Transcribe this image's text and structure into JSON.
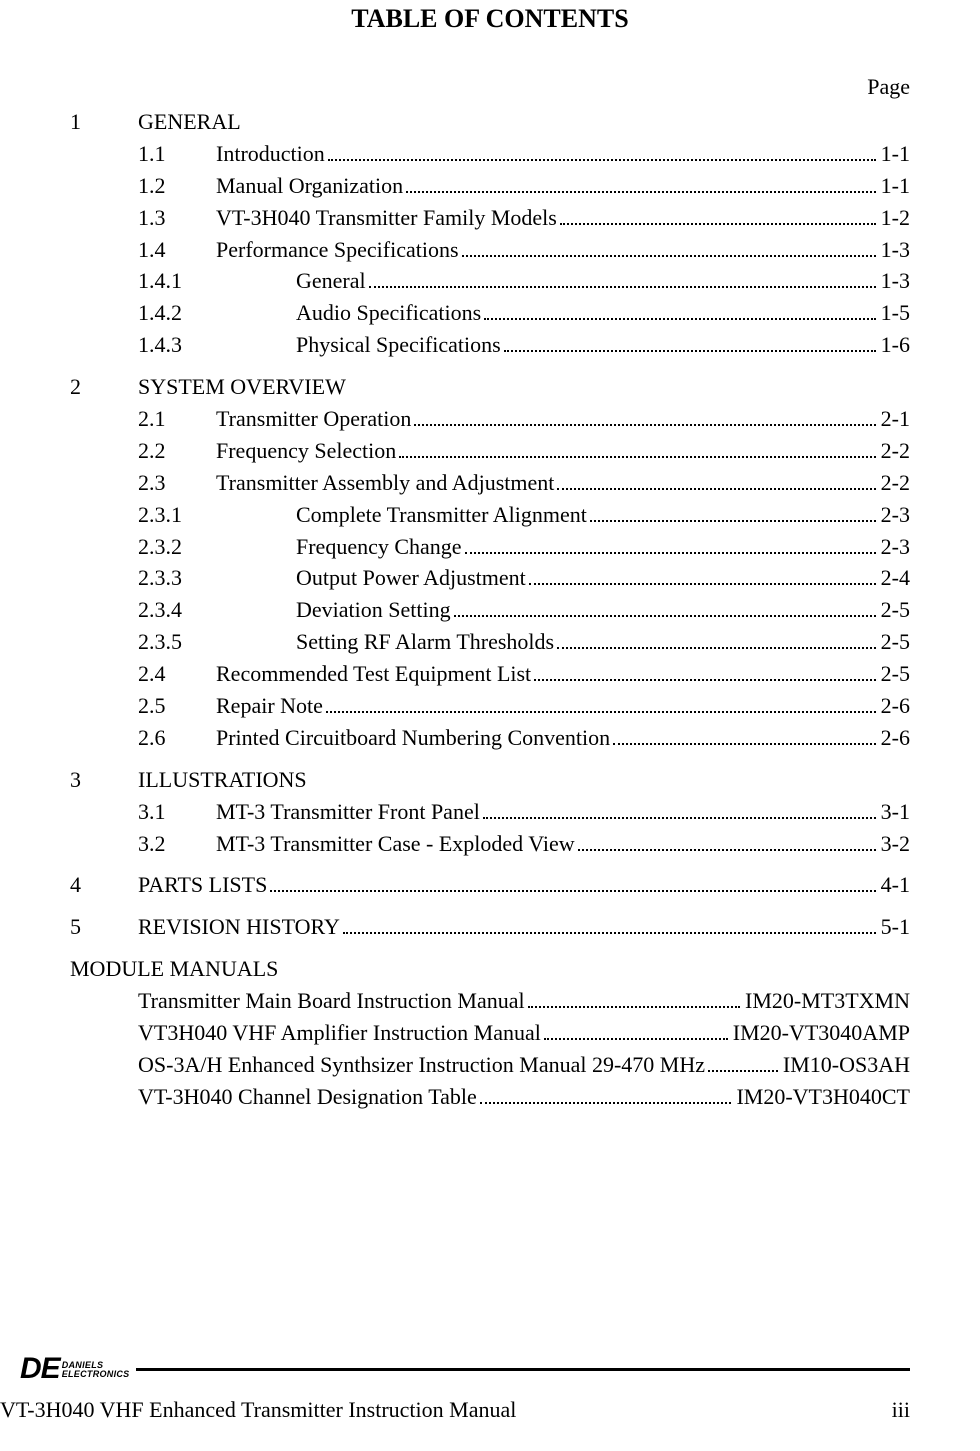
{
  "title": "TABLE OF CONTENTS",
  "page_label": "Page",
  "sections": [
    {
      "num": "1",
      "title": "GENERAL",
      "page": "",
      "items": [
        {
          "num": "1.1",
          "title": "Introduction",
          "page": "1-1",
          "indent": 1
        },
        {
          "num": "1.2",
          "title": "Manual Organization",
          "page": "1-1",
          "indent": 1
        },
        {
          "num": "1.3",
          "title": "VT-3H040 Transmitter Family Models",
          "page": "1-2",
          "indent": 1
        },
        {
          "num": "1.4",
          "title": "Performance Specifications",
          "page": "1-3",
          "indent": 1
        },
        {
          "num": "1.4.1",
          "title": "General",
          "page": "1-3",
          "indent": 2
        },
        {
          "num": "1.4.2",
          "title": "Audio Specifications",
          "page": "1-5",
          "indent": 2
        },
        {
          "num": "1.4.3",
          "title": "Physical Specifications",
          "page": "1-6",
          "indent": 2
        }
      ]
    },
    {
      "num": "2",
      "title": "SYSTEM OVERVIEW",
      "page": "",
      "items": [
        {
          "num": "2.1",
          "title": "Transmitter Operation",
          "page": "2-1",
          "indent": 1
        },
        {
          "num": "2.2",
          "title": "Frequency Selection",
          "page": "2-2",
          "indent": 1
        },
        {
          "num": "2.3",
          "title": "Transmitter Assembly and Adjustment",
          "page": "2-2",
          "indent": 1
        },
        {
          "num": "2.3.1",
          "title": "Complete Transmitter Alignment",
          "page": "2-3",
          "indent": 2
        },
        {
          "num": "2.3.2",
          "title": "Frequency Change",
          "page": "2-3",
          "indent": 2
        },
        {
          "num": "2.3.3",
          "title": "Output Power Adjustment",
          "page": "2-4",
          "indent": 2
        },
        {
          "num": "2.3.4",
          "title": "Deviation Setting",
          "page": "2-5",
          "indent": 2
        },
        {
          "num": "2.3.5",
          "title": "Setting RF Alarm Thresholds",
          "page": "2-5",
          "indent": 2
        },
        {
          "num": "2.4",
          "title": "Recommended Test Equipment List",
          "page": "2-5",
          "indent": 1
        },
        {
          "num": "2.5",
          "title": "Repair Note",
          "page": "2-6",
          "indent": 1
        },
        {
          "num": "2.6",
          "title": "Printed Circuitboard Numbering Convention",
          "page": "2-6",
          "indent": 1
        }
      ]
    },
    {
      "num": "3",
      "title": "ILLUSTRATIONS",
      "page": "",
      "items": [
        {
          "num": "3.1",
          "title": "MT-3 Transmitter Front Panel",
          "page": "3-1",
          "indent": 1
        },
        {
          "num": "3.2",
          "title": "MT-3 Transmitter Case - Exploded View",
          "page": "3-2",
          "indent": 1
        }
      ]
    },
    {
      "num": "4",
      "title": "PARTS LISTS",
      "page": "4-1",
      "leader": true,
      "items": []
    },
    {
      "num": "5",
      "title": "REVISION HISTORY",
      "page": "5-1",
      "leader": true,
      "items": []
    }
  ],
  "module_heading": "MODULE MANUALS",
  "modules": [
    {
      "title": "Transmitter Main Board Instruction Manual ",
      "page": "IM20-MT3TXMN"
    },
    {
      "title": "VT3H040 VHF Amplifier Instruction Manual ",
      "page": " IM20-VT3040AMP"
    },
    {
      "title": "OS-3A/H Enhanced Synthsizer Instruction Manual 29-470 MHz ",
      "page": " IM10-OS3AH"
    },
    {
      "title": "VT-3H040 Channel Designation Table ",
      "page": "IM20-VT3H040CT"
    }
  ],
  "logo": {
    "de": "DE",
    "line1": "DANIELS",
    "line2": "ELECTRONICS"
  },
  "footer_left": "VT-3H040 VHF Enhanced Transmitter Instruction Manual",
  "footer_right": "iii"
}
